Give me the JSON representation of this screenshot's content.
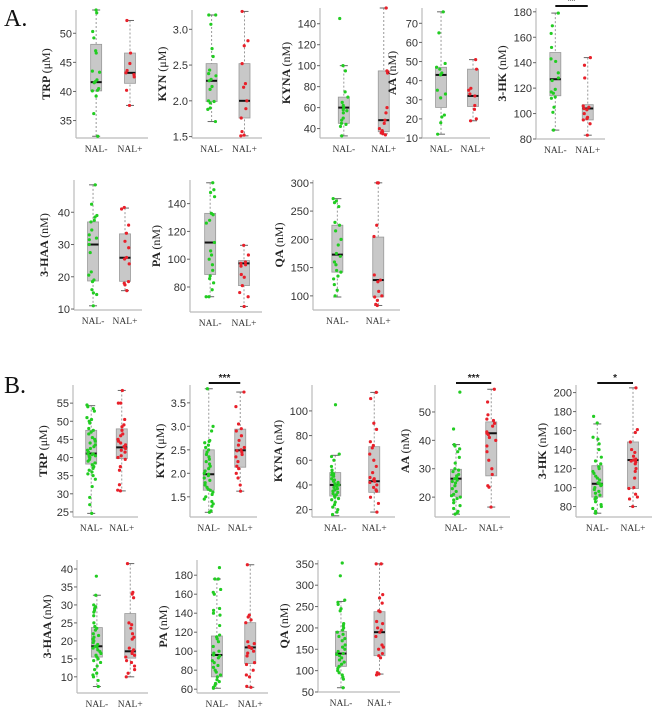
{
  "panels": {
    "A": "A.",
    "B": "B."
  },
  "colors": {
    "NAL-": "#22cc22",
    "NAL+": "#e8202a",
    "box": "#c8c8c8",
    "median": "#111111",
    "whisker": "#999999",
    "axis": "#bbbbbb"
  },
  "chart_data": [
    {
      "type": "box",
      "panel": "A",
      "name": "TRP",
      "unit": "(μM)",
      "categories": [
        "NAL-",
        "NAL+"
      ],
      "ylim": [
        32,
        54
      ],
      "ticks": [
        35,
        40,
        45,
        50
      ],
      "box": [
        [
          32.3,
          40.1,
          41.6,
          48.1,
          54
        ],
        [
          37.6,
          41.4,
          43.2,
          46.6,
          52.2
        ]
      ],
      "points": [
        [
          54,
          53.5,
          50.3,
          49.2,
          47,
          46.6,
          43.5,
          43.3,
          42,
          41.7,
          41.5,
          40.5,
          40.2,
          40.1,
          39.2,
          36.2,
          32.3
        ],
        [
          52.2,
          46.6,
          44.8,
          43.6,
          43.2,
          42.9,
          42.5,
          40.2,
          37.6
        ]
      ]
    },
    {
      "type": "box",
      "panel": "A",
      "name": "KYN",
      "unit": "(μM)",
      "categories": [
        "NAL-",
        "NAL+"
      ],
      "ylim": [
        1.48,
        3.27
      ],
      "ticks": [
        1.5,
        2.0,
        2.5,
        3.0
      ],
      "box": [
        [
          1.71,
          1.99,
          2.28,
          2.52,
          3.2
        ],
        [
          1.51,
          1.76,
          2.0,
          2.52,
          3.25
        ]
      ],
      "points": [
        [
          3.2,
          3.2,
          3.07,
          2.73,
          2.62,
          2.43,
          2.38,
          2.35,
          2.3,
          2.28,
          2.2,
          2.16,
          2.0,
          1.99,
          1.97,
          1.9,
          1.88,
          1.71
        ],
        [
          3.25,
          2.84,
          2.77,
          2.52,
          2.24,
          2.19,
          2.0,
          1.89,
          1.76,
          1.57,
          1.52,
          1.51
        ]
      ]
    },
    {
      "type": "box",
      "panel": "A",
      "name": "KYNA",
      "unit": "(nM)",
      "categories": [
        "NAL-",
        "NAL+"
      ],
      "ylim": [
        31,
        155
      ],
      "ticks": [
        40,
        60,
        80,
        100,
        120,
        140
      ],
      "box": [
        [
          33,
          45,
          60,
          70,
          100
        ],
        [
          35,
          37,
          48,
          95,
          155
        ]
      ],
      "points": [
        [
          145,
          100,
          95,
          75,
          70,
          65,
          62,
          60,
          58,
          57,
          55,
          50,
          48,
          45,
          44,
          42,
          33
        ],
        [
          155,
          95,
          94,
          93,
          60,
          55,
          48,
          45,
          40,
          38,
          37,
          36,
          35,
          34
        ]
      ]
    },
    {
      "type": "box",
      "panel": "A",
      "name": "AA",
      "unit": "(nM)",
      "categories": [
        "NAL-",
        "NAL+"
      ],
      "ylim": [
        10,
        78
      ],
      "ticks": [
        10,
        20,
        30,
        40,
        50,
        60,
        70
      ],
      "box": [
        [
          12,
          26,
          43,
          47,
          76
        ],
        [
          19,
          26.5,
          32,
          46,
          51
        ]
      ],
      "points": [
        [
          76,
          65,
          49,
          47,
          46,
          44,
          43,
          35,
          33,
          31,
          22,
          21,
          18,
          12
        ],
        [
          51,
          46,
          36,
          35,
          33,
          32,
          27,
          25,
          20,
          19
        ]
      ]
    },
    {
      "type": "box",
      "panel": "A",
      "name": "3-HK",
      "unit": "(nM)",
      "categories": [
        "NAL-",
        "NAL+"
      ],
      "ylim": [
        80,
        183
      ],
      "ticks": [
        80,
        100,
        120,
        140,
        160,
        180
      ],
      "significance": "**",
      "box": [
        [
          87,
          114,
          127,
          148,
          179
        ],
        [
          83,
          95,
          104,
          107,
          144
        ]
      ],
      "points": [
        [
          179,
          169,
          163,
          152,
          143,
          141,
          132,
          128,
          126,
          119,
          117,
          116,
          113,
          112,
          105,
          101,
          87
        ],
        [
          144,
          138,
          128,
          106,
          105,
          104,
          103,
          100,
          97,
          96,
          95,
          92,
          83
        ]
      ]
    },
    {
      "type": "box",
      "panel": "A",
      "name": "3-HAA",
      "unit": "(nM)",
      "categories": [
        "NAL-",
        "NAL+"
      ],
      "ylim": [
        9.7,
        50
      ],
      "ticks": [
        10,
        20,
        30,
        40
      ],
      "box": [
        [
          11,
          18.7,
          30,
          37,
          48.5
        ],
        [
          15.7,
          18.6,
          25.9,
          33.3,
          41.3
        ]
      ],
      "points": [
        [
          48.5,
          42.5,
          39,
          38.5,
          37.5,
          37,
          34.5,
          33,
          32,
          31.5,
          30,
          27.5,
          21.5,
          20.5,
          19,
          18.5,
          16,
          15,
          14.5,
          11
        ],
        [
          41.5,
          41,
          36,
          33.5,
          31,
          29,
          26,
          25.5,
          24,
          18.5,
          18,
          17.5,
          15.7
        ]
      ]
    },
    {
      "type": "box",
      "panel": "A",
      "name": "PA",
      "unit": "(nM)",
      "categories": [
        "NAL-",
        "NAL+"
      ],
      "ylim": [
        62,
        157
      ],
      "ticks": [
        80,
        100,
        120,
        140
      ],
      "box": [
        [
          73,
          89,
          112,
          133,
          155
        ],
        [
          66,
          81,
          97,
          99,
          110
        ]
      ],
      "points": [
        [
          155,
          150,
          148,
          145,
          133,
          132,
          128,
          126,
          112,
          106,
          103,
          100,
          96,
          92,
          88,
          86,
          83,
          78,
          73,
          73
        ],
        [
          110,
          103,
          98,
          97,
          96,
          95,
          89,
          87,
          81,
          76,
          73,
          66
        ]
      ]
    },
    {
      "type": "box",
      "panel": "A",
      "name": "QA",
      "unit": "(nM)",
      "categories": [
        "NAL-",
        "NAL+"
      ],
      "ylim": [
        75,
        305
      ],
      "ticks": [
        100,
        150,
        200,
        250,
        300
      ],
      "box": [
        [
          98,
          142,
          173,
          225,
          272
        ],
        [
          83,
          98,
          128,
          204,
          300
        ]
      ],
      "points": [
        [
          272,
          268,
          265,
          258,
          230,
          225,
          215,
          200,
          190,
          175,
          170,
          160,
          155,
          145,
          142,
          135,
          130,
          120,
          110,
          100
        ],
        [
          300,
          300,
          225,
          205,
          137,
          128,
          125,
          108,
          100,
          98,
          92,
          85,
          83
        ]
      ]
    },
    {
      "type": "box",
      "panel": "B",
      "name": "TRP",
      "unit": "(μM)",
      "categories": [
        "NAL-",
        "NAL+"
      ],
      "ylim": [
        23.6,
        60
      ],
      "ticks": [
        25,
        30,
        35,
        40,
        45,
        50,
        55
      ],
      "box": [
        [
          24.6,
          38.2,
          41.1,
          47.5,
          54.3
        ],
        [
          30.8,
          39.7,
          42.8,
          47.9,
          58.5
        ]
      ],
      "points": [
        [
          54.5,
          54,
          53.5,
          52.8,
          51,
          50.5,
          50,
          49.5,
          48,
          47.5,
          47,
          46.5,
          45.5,
          45,
          44.5,
          44,
          43.5,
          43,
          42.5,
          42,
          41.5,
          41,
          41,
          40.8,
          40.5,
          40.3,
          40,
          39.5,
          39,
          38.5,
          38,
          37.5,
          37,
          36.5,
          36,
          35.5,
          35,
          34,
          32,
          29,
          27,
          24.6
        ],
        [
          58.5,
          55,
          55,
          50.5,
          49,
          48.5,
          47.5,
          46.5,
          46,
          45,
          44.5,
          44,
          43.5,
          43,
          42.5,
          42,
          41.5,
          40.5,
          40,
          39.5,
          37.5,
          36.5,
          32.5,
          31,
          30.8
        ]
      ]
    },
    {
      "type": "box",
      "panel": "B",
      "name": "KYN",
      "unit": "(μM)",
      "categories": [
        "NAL-",
        "NAL+"
      ],
      "ylim": [
        1.07,
        3.88
      ],
      "ticks": [
        1.5,
        2.0,
        2.5,
        3.0,
        3.5
      ],
      "significance": "***",
      "box": [
        [
          1.17,
          1.64,
          1.98,
          2.5,
          3.8
        ],
        [
          1.62,
          2.13,
          2.49,
          2.94,
          3.73
        ]
      ],
      "points": [
        [
          3.8,
          3.0,
          2.9,
          2.7,
          2.68,
          2.65,
          2.6,
          2.55,
          2.5,
          2.45,
          2.4,
          2.35,
          2.3,
          2.25,
          2.2,
          2.15,
          2.1,
          2.05,
          2.0,
          1.98,
          1.95,
          1.9,
          1.85,
          1.8,
          1.75,
          1.7,
          1.66,
          1.64,
          1.6,
          1.55,
          1.5,
          1.45,
          1.4,
          1.35,
          1.3,
          1.2,
          1.17
        ],
        [
          3.73,
          3.42,
          3.05,
          2.95,
          2.9,
          2.8,
          2.7,
          2.6,
          2.55,
          2.5,
          2.48,
          2.45,
          2.4,
          2.35,
          2.25,
          2.15,
          2.1,
          2.0,
          1.9,
          1.75,
          1.62
        ]
      ]
    },
    {
      "type": "box",
      "panel": "B",
      "name": "KYNA",
      "unit": "(nM)",
      "categories": [
        "NAL-",
        "NAL+"
      ],
      "ylim": [
        14,
        121
      ],
      "ticks": [
        20,
        40,
        60,
        80,
        100
      ],
      "box": [
        [
          15,
          31,
          40,
          50,
          64
        ],
        [
          18,
          34,
          43,
          71,
          115
        ]
      ],
      "points": [
        [
          105,
          65,
          63,
          60,
          55,
          52,
          50,
          49,
          48,
          47,
          45,
          44,
          43,
          42,
          41,
          40,
          40,
          39,
          38,
          37,
          36,
          35,
          34,
          33,
          32,
          31,
          30,
          29,
          28,
          26,
          24,
          22,
          20,
          18,
          16
        ],
        [
          115,
          110,
          90,
          85,
          75,
          72,
          70,
          65,
          60,
          55,
          50,
          46,
          45,
          44,
          43,
          42,
          40,
          38,
          36,
          35,
          30,
          25,
          18
        ]
      ]
    },
    {
      "type": "box",
      "panel": "B",
      "name": "AA",
      "unit": "(nM)",
      "categories": [
        "NAL-",
        "NAL+"
      ],
      "ylim": [
        13,
        59.5
      ],
      "ticks": [
        20,
        30,
        40,
        50
      ],
      "significance": "***",
      "box": [
        [
          14,
          20.3,
          26.5,
          29.8,
          38.5
        ],
        [
          16.5,
          27.5,
          42.5,
          46.5,
          58
        ]
      ],
      "points": [
        [
          57,
          44,
          38.5,
          38,
          37,
          36,
          34,
          32,
          30,
          29.5,
          29,
          28,
          27.5,
          27,
          26.5,
          26,
          25.5,
          25,
          24,
          23,
          22,
          21,
          20.5,
          20,
          19.5,
          19,
          18,
          17,
          16,
          15,
          14.5,
          14
        ],
        [
          58,
          53.5,
          49,
          47.5,
          47,
          46,
          45,
          43,
          42.5,
          42,
          41,
          40,
          38,
          36,
          33,
          30,
          28,
          24,
          23.5,
          16.5
        ]
      ]
    },
    {
      "type": "box",
      "panel": "B",
      "name": "3-HK",
      "unit": "(nM)",
      "categories": [
        "NAL-",
        "NAL+"
      ],
      "ylim": [
        69,
        208
      ],
      "ticks": [
        80,
        100,
        120,
        140,
        160,
        180,
        200
      ],
      "significance": "*",
      "box": [
        [
          73,
          90,
          104,
          123,
          167
        ],
        [
          80,
          99,
          129,
          148,
          205
        ]
      ],
      "points": [
        [
          175,
          168,
          153,
          151,
          146,
          140,
          132,
          128,
          125,
          122,
          120,
          117,
          115,
          112,
          110,
          108,
          105,
          104,
          103,
          102,
          100,
          98,
          96,
          94,
          92,
          90,
          89,
          88,
          85,
          82,
          80,
          78,
          75,
          73
        ],
        [
          205,
          161,
          158,
          148,
          140,
          137,
          133,
          130,
          129,
          128,
          127,
          125,
          120,
          117,
          110,
          100,
          99,
          93,
          90,
          88,
          80
        ]
      ]
    },
    {
      "type": "box",
      "panel": "B",
      "name": "3-HAA",
      "unit": "(nM)",
      "categories": [
        "NAL-",
        "NAL+"
      ],
      "ylim": [
        5.5,
        42.5
      ],
      "ticks": [
        10,
        15,
        20,
        25,
        30,
        35,
        40
      ],
      "box": [
        [
          7.3,
          15.5,
          18.5,
          23.7,
          32.7
        ],
        [
          10,
          15.2,
          17.1,
          27.6,
          41.5
        ]
      ],
      "points": [
        [
          38,
          32.7,
          30,
          29.5,
          29,
          28.5,
          28,
          27,
          25,
          24,
          23.5,
          23,
          22,
          21.5,
          21,
          20.5,
          20,
          19.5,
          19,
          18.5,
          18.3,
          18,
          17.5,
          17,
          16.5,
          16,
          15.5,
          15,
          14.5,
          14,
          13,
          12,
          11,
          10.5,
          10,
          9,
          7.3
        ],
        [
          41.5,
          33.5,
          33,
          32,
          25,
          24.5,
          23.5,
          22,
          21,
          20.5,
          18,
          17.5,
          17,
          16.5,
          16,
          15.5,
          14.5,
          14,
          13,
          12,
          11,
          10
        ]
      ]
    },
    {
      "type": "box",
      "panel": "B",
      "name": "PA",
      "unit": "(nM)",
      "categories": [
        "NAL-",
        "NAL+"
      ],
      "ylim": [
        56,
        196
      ],
      "ticks": [
        60,
        80,
        100,
        120,
        140,
        160,
        180
      ],
      "box": [
        [
          61,
          73,
          96,
          116,
          176
        ],
        [
          62,
          87,
          104,
          130,
          191
        ]
      ],
      "points": [
        [
          188,
          176,
          176,
          165,
          162,
          160,
          145,
          143,
          140,
          138,
          127,
          117,
          115,
          113,
          110,
          105,
          100,
          98,
          96,
          95,
          93,
          90,
          88,
          85,
          83,
          80,
          78,
          75,
          73,
          70,
          68,
          66,
          64,
          62,
          61
        ],
        [
          191,
          138,
          136,
          133,
          130,
          110,
          108,
          105,
          104,
          103,
          100,
          98,
          95,
          88,
          86,
          80,
          75,
          73,
          63,
          62
        ]
      ]
    },
    {
      "type": "box",
      "panel": "B",
      "name": "QA",
      "unit": "(nM)",
      "categories": [
        "NAL-",
        "NAL+"
      ],
      "ylim": [
        50,
        359
      ],
      "ticks": [
        50,
        100,
        150,
        200,
        250,
        300,
        350
      ],
      "box": [
        [
          60,
          110,
          140,
          192,
          262
        ],
        [
          92,
          135,
          190,
          238,
          350
        ]
      ],
      "points": [
        [
          352,
          322,
          265,
          260,
          255,
          245,
          240,
          210,
          205,
          200,
          195,
          190,
          185,
          180,
          175,
          170,
          160,
          155,
          150,
          145,
          140,
          138,
          135,
          130,
          125,
          120,
          115,
          110,
          105,
          100,
          95,
          90,
          85,
          80,
          60
        ],
        [
          350,
          350,
          278,
          270,
          258,
          240,
          238,
          215,
          210,
          200,
          195,
          190,
          180,
          160,
          155,
          150,
          140,
          135,
          130,
          95,
          92,
          90
        ]
      ]
    }
  ]
}
